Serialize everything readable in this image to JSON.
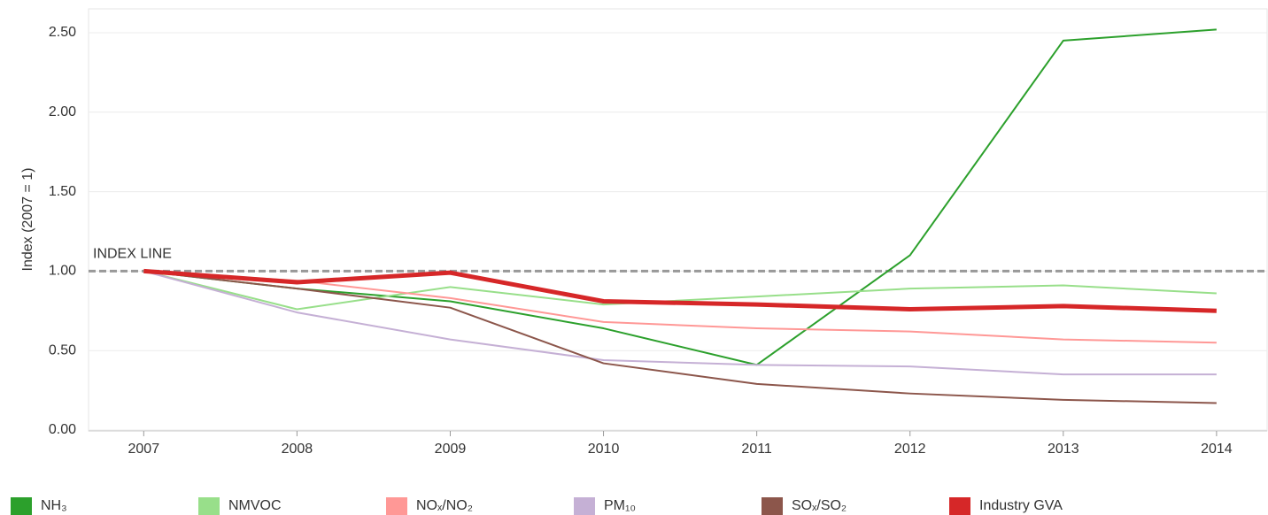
{
  "chart_data": {
    "type": "line",
    "y_label": "Index (2007 = 1)",
    "x": [
      2007,
      2008,
      2009,
      2010,
      2011,
      2012,
      2013,
      2014
    ],
    "xlim": [
      2006.64,
      2014.33
    ],
    "xticks": [
      2007,
      2008,
      2009,
      2010,
      2011,
      2012,
      2013,
      2014
    ],
    "ylim": [
      0,
      2.65
    ],
    "yticks": [
      {
        "value": 0,
        "label": "0.00"
      },
      {
        "value": 0.5,
        "label": "0.50"
      },
      {
        "value": 1,
        "label": "1.00"
      },
      {
        "value": 1.5,
        "label": "1.50"
      },
      {
        "value": 2,
        "label": "2.00"
      },
      {
        "value": 2.5,
        "label": "2.50"
      }
    ],
    "grid": true,
    "legend": "bottom",
    "index_line": {
      "value": 1,
      "label": "INDEX LINE"
    },
    "series": [
      {
        "name": "NH₃",
        "color": "#2ca02c",
        "line_width": 2,
        "values": [
          1.0,
          0.89,
          0.81,
          0.64,
          0.41,
          1.1,
          2.45,
          2.52
        ]
      },
      {
        "name": "NMVOC",
        "color": "#98df8a",
        "line_width": 2,
        "values": [
          1.0,
          0.76,
          0.9,
          0.79,
          0.84,
          0.89,
          0.91,
          0.86
        ]
      },
      {
        "name": "NOₓ/NO₂",
        "color": "#ff9896",
        "line_width": 2,
        "values": [
          1.0,
          0.94,
          0.83,
          0.68,
          0.64,
          0.62,
          0.57,
          0.55
        ]
      },
      {
        "name": "PM₁₀",
        "color": "#c5b0d5",
        "line_width": 2,
        "values": [
          1.0,
          0.74,
          0.57,
          0.44,
          0.41,
          0.4,
          0.35,
          0.35
        ]
      },
      {
        "name": "SOₓ/SO₂",
        "color": "#8c564b",
        "line_width": 2,
        "values": [
          1.0,
          0.89,
          0.77,
          0.42,
          0.29,
          0.23,
          0.19,
          0.17
        ]
      },
      {
        "name": "Industry GVA",
        "color": "#d62728",
        "line_width": 5,
        "values": [
          1.0,
          0.93,
          0.99,
          0.81,
          0.79,
          0.76,
          0.78,
          0.75
        ]
      }
    ]
  }
}
